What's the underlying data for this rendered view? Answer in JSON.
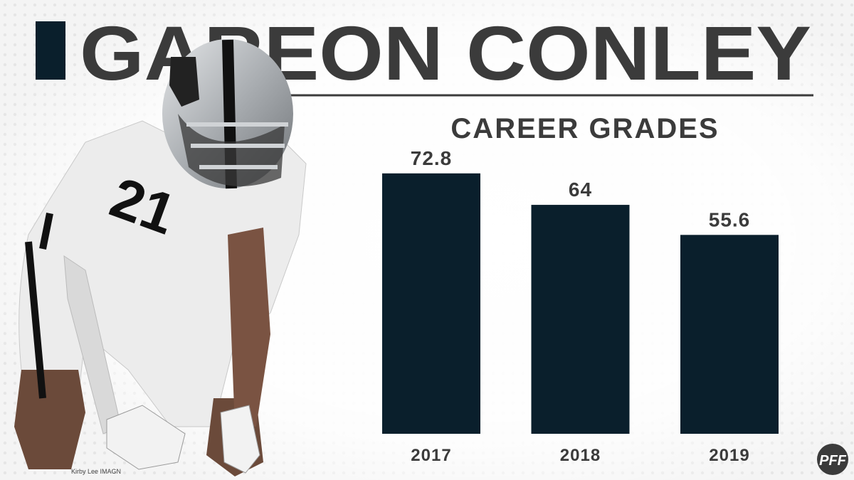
{
  "chart_data": {
    "type": "bar",
    "title": "GAREON CONLEY",
    "subtitle": "CAREER GRADES",
    "categories": [
      "2017",
      "2018",
      "2019"
    ],
    "values": [
      72.8,
      64,
      55.6
    ],
    "color": "#0a1f2c",
    "photo_credit": "Kirby Lee IMAGN",
    "logo": "PFF"
  }
}
